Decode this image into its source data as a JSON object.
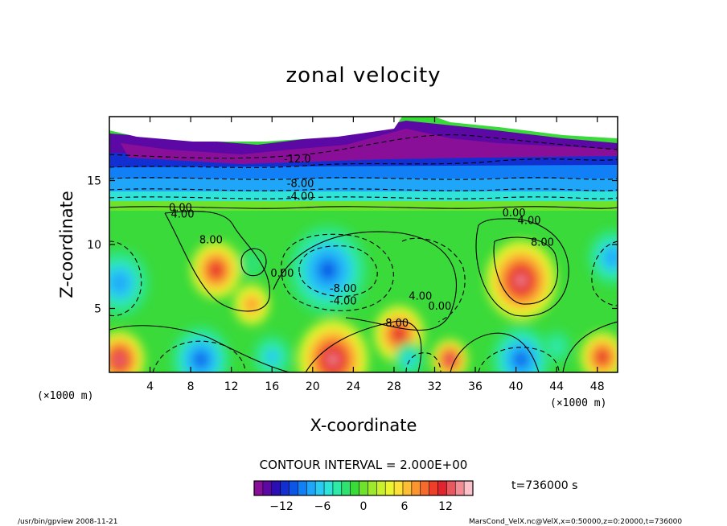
{
  "chart_data": {
    "type": "heatmap",
    "title": "zonal velocity",
    "xlabel": "X-coordinate",
    "ylabel": "Z-coordinate",
    "x_unit": "(×1000 m)",
    "y_unit": "(×1000 m)",
    "xlim": [
      0,
      50
    ],
    "ylim": [
      0,
      20
    ],
    "x_ticks": [
      4,
      8,
      12,
      16,
      20,
      24,
      28,
      32,
      36,
      40,
      44,
      48
    ],
    "y_ticks": [
      5,
      10,
      15
    ],
    "contour_interval_text": "CONTOUR INTERVAL = 2.000E+00",
    "contour_labels": [
      {
        "text": "-12.0",
        "x": 18.5,
        "y": 16.4
      },
      {
        "text": "-8.00",
        "x": 18.8,
        "y": 14.5
      },
      {
        "text": "-4.00",
        "x": 18.8,
        "y": 13.5
      },
      {
        "text": "0.00",
        "x": 7.0,
        "y": 12.6
      },
      {
        "text": "4.00",
        "x": 7.2,
        "y": 12.1
      },
      {
        "text": "8.00",
        "x": 10.0,
        "y": 10.1
      },
      {
        "text": "0.00",
        "x": 17.0,
        "y": 7.5
      },
      {
        "text": "-8.00",
        "x": 23.0,
        "y": 6.3
      },
      {
        "text": "-4.00",
        "x": 23.0,
        "y": 5.3
      },
      {
        "text": "4.00",
        "x": 30.6,
        "y": 5.7
      },
      {
        "text": "0.00",
        "x": 32.5,
        "y": 4.9
      },
      {
        "text": "8.00",
        "x": 28.3,
        "y": 3.6
      },
      {
        "text": "0.00",
        "x": 39.8,
        "y": 12.2
      },
      {
        "text": "4.00",
        "x": 41.3,
        "y": 11.6
      },
      {
        "text": "8.00",
        "x": 42.6,
        "y": 9.9
      }
    ],
    "extrema": [
      {
        "x": 40.5,
        "y": 7.2,
        "value": 13,
        "r": 3.5
      },
      {
        "x": 10.5,
        "y": 8.0,
        "value": 11,
        "r": 2.5
      },
      {
        "x": 14.0,
        "y": 5.3,
        "value": 8,
        "r": 1.8
      },
      {
        "x": 21.5,
        "y": 8.0,
        "value": -10,
        "r": 4.0
      },
      {
        "x": 1.0,
        "y": 7.0,
        "value": -8,
        "r": 3.0
      },
      {
        "x": 49.5,
        "y": 9.0,
        "value": -7,
        "r": 2.5
      },
      {
        "x": 14.0,
        "y": 8.5,
        "value": -2,
        "r": 1.2
      },
      {
        "x": 1.0,
        "y": 1.0,
        "value": 13,
        "r": 2.5
      },
      {
        "x": 22.0,
        "y": 1.0,
        "value": 13,
        "r": 3.5
      },
      {
        "x": 28.5,
        "y": 3.0,
        "value": 11,
        "r": 2.5
      },
      {
        "x": 33.5,
        "y": 1.0,
        "value": 13,
        "r": 1.8
      },
      {
        "x": 48.5,
        "y": 1.2,
        "value": 11,
        "r": 2.2
      },
      {
        "x": 9.0,
        "y": 1.0,
        "value": -9,
        "r": 3.0
      },
      {
        "x": 16.0,
        "y": 1.2,
        "value": -6,
        "r": 2.0
      },
      {
        "x": 29.5,
        "y": 1.0,
        "value": -5,
        "r": 1.5
      },
      {
        "x": 40.5,
        "y": 1.0,
        "value": -10,
        "r": 3.0
      },
      {
        "x": 44.0,
        "y": 2.0,
        "value": -4,
        "r": 1.5
      }
    ],
    "colorbar": {
      "vmin": -16,
      "vmax": 16,
      "ticks": [
        -12,
        -6,
        0,
        6,
        12
      ],
      "colors": [
        "#8a0f98",
        "#5b08a5",
        "#2c0fb4",
        "#1230d2",
        "#0d55e6",
        "#117ff5",
        "#1fa6f8",
        "#2acbf2",
        "#2fe3d8",
        "#2fe9a6",
        "#2fe270",
        "#3ada3a",
        "#6fe22c",
        "#9ee92c",
        "#c8f02d",
        "#ecf42f",
        "#fde03a",
        "#fdbd35",
        "#fb9530",
        "#f66a2c",
        "#ee3f29",
        "#e0232d",
        "#e8595f",
        "#f28d95",
        "#fbc3c9"
      ]
    },
    "time_label": "t=736000  s",
    "footer_left": "/usr/bin/gpview   2008-11-21",
    "footer_right": "MarsCond_VelX.nc@VelX,x=0:50000,z=0:20000,t=736000"
  }
}
